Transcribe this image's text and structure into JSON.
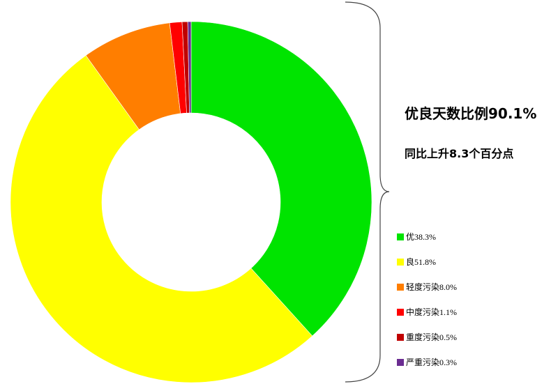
{
  "headline": "优良天数比例90.1%",
  "subheadline": "同比上升8.3个百分点",
  "chart_data": {
    "type": "pie",
    "donut": true,
    "start": "top",
    "direction": "clockwise",
    "categories": [
      "优",
      "良",
      "轻度污染",
      "中度污染",
      "重度污染",
      "严重污染"
    ],
    "values": [
      38.3,
      51.8,
      8.0,
      1.1,
      0.5,
      0.3
    ],
    "colors": [
      "#00e400",
      "#ffff00",
      "#ff7e00",
      "#ff0000",
      "#c00000",
      "#6a2c91"
    ],
    "legend_labels": [
      "优38.3%",
      "良51.8%",
      "轻度污染8.0%",
      "中度污染1.1%",
      "重度污染0.5%",
      "严重污染0.3%"
    ],
    "legend_position": "right"
  }
}
